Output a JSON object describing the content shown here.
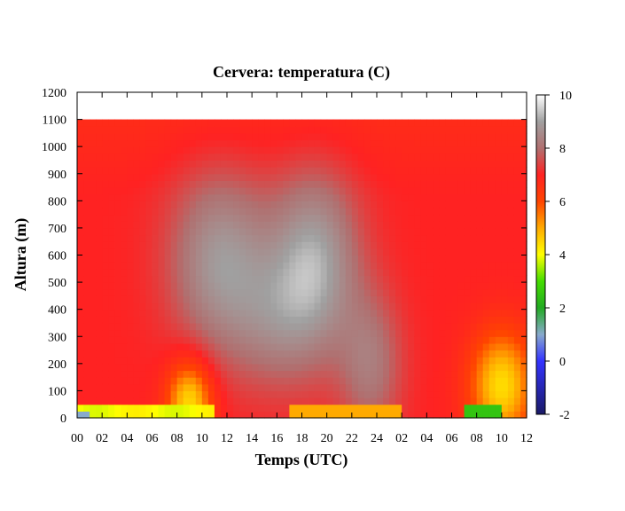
{
  "chart_data": {
    "type": "heatmap",
    "title": "Cervera: temperatura (C)",
    "xlabel": "Temps (UTC)",
    "ylabel": "Altura (m)",
    "x_tick_labels": [
      "00",
      "02",
      "04",
      "06",
      "08",
      "10",
      "12",
      "14",
      "16",
      "18",
      "20",
      "22",
      "24",
      "02",
      "04",
      "06",
      "08",
      "10",
      "12"
    ],
    "y_ticks": [
      0,
      100,
      200,
      300,
      400,
      500,
      600,
      700,
      800,
      900,
      1000,
      1100,
      1200
    ],
    "ylim": [
      0,
      1200
    ],
    "xlim_hours": [
      0,
      36
    ],
    "data_top": 1100,
    "colorbar": {
      "range": [
        -2,
        10
      ],
      "ticks": [
        -2,
        0,
        2,
        4,
        6,
        8,
        10
      ],
      "stops": [
        {
          "value": -2,
          "color": "#1a1a66"
        },
        {
          "value": 0,
          "color": "#3333ff"
        },
        {
          "value": 1,
          "color": "#88aacc"
        },
        {
          "value": 2,
          "color": "#22aa22"
        },
        {
          "value": 3,
          "color": "#44dd00"
        },
        {
          "value": 4,
          "color": "#ffff00"
        },
        {
          "value": 5,
          "color": "#ffaa00"
        },
        {
          "value": 6,
          "color": "#ff4400"
        },
        {
          "value": 7,
          "color": "#ff2222"
        },
        {
          "value": 8,
          "color": "#b07070"
        },
        {
          "value": 9,
          "color": "#a0a0a0"
        },
        {
          "value": 10,
          "color": "#ffffff"
        }
      ]
    }
  }
}
